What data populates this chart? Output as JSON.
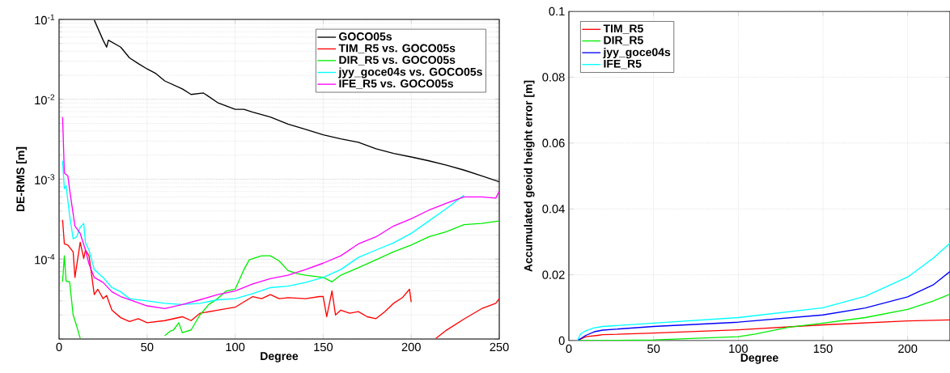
{
  "chart_data": [
    {
      "type": "line",
      "xlabel": "Degree",
      "ylabel": "DE-RMS [m]",
      "xlim": [
        0,
        250
      ],
      "ylim": [
        1e-05,
        0.1
      ],
      "log": "y",
      "grid": true,
      "legend": "top right",
      "xticks": [
        0,
        50,
        100,
        150,
        200,
        250
      ],
      "yticks": [
        {
          "value": 1e-05,
          "label": null
        },
        {
          "value": 0.0001,
          "label": "10$^{-4}$"
        },
        {
          "value": 0.001,
          "label": "10$^{-3}$"
        },
        {
          "value": 0.01,
          "label": "10$^{-2}$"
        },
        {
          "value": 0.1,
          "label": "10$^{-1}$"
        }
      ],
      "series": [
        {
          "name": "GOCO05s",
          "color": "#000000",
          "x": [
            20,
            25,
            27,
            28,
            35,
            40,
            45,
            50,
            55,
            60,
            70,
            75,
            82,
            90,
            100,
            105,
            110,
            120,
            130,
            140,
            150,
            160,
            170,
            180,
            190,
            200,
            210,
            220,
            230,
            240,
            250
          ],
          "values": [
            0.098,
            0.055,
            0.045,
            0.055,
            0.045,
            0.033,
            0.028,
            0.024,
            0.021,
            0.017,
            0.0135,
            0.0115,
            0.012,
            0.0091,
            0.0075,
            0.0075,
            0.0069,
            0.006,
            0.0049,
            0.0042,
            0.0036,
            0.0032,
            0.0029,
            0.0024,
            0.0021,
            0.0019,
            0.0017,
            0.0015,
            0.0013,
            0.0011,
            0.00093
          ]
        },
        {
          "name": "TIM_R5 vs. GOCO05s",
          "color": "#ff0000",
          "x": [
            2,
            3,
            5,
            8,
            9,
            12,
            14,
            15,
            17,
            20,
            22,
            25,
            27,
            30,
            35,
            40,
            45,
            50,
            60,
            70,
            75,
            80,
            90,
            100,
            110,
            115,
            120,
            125,
            130,
            140,
            148,
            150,
            152,
            155,
            157,
            160,
            165,
            170,
            175,
            180,
            185,
            190,
            195,
            199,
            200,
            205,
            210,
            214,
            220,
            230,
            240,
            248,
            250
          ],
          "values": [
            0.00031,
            0.000155,
            0.00015,
            0.000123,
            5.9e-05,
            0.000163,
            0.000102,
            0.00013,
            0.00011,
            3.6e-05,
            4.2e-05,
            3.2e-05,
            3.5e-05,
            2.3e-05,
            1.85e-05,
            1.66e-05,
            1.8e-05,
            1.6e-05,
            1.7e-05,
            1.9e-05,
            1.7e-05,
            2.1e-05,
            2.3e-05,
            2.5e-05,
            3.4e-05,
            3.2e-05,
            3.6e-05,
            3.2e-05,
            3.3e-05,
            3.2e-05,
            3.4e-05,
            3.4e-05,
            1.9e-05,
            4e-05,
            2e-05,
            2.3e-05,
            2.1e-05,
            2.2e-05,
            1.9e-05,
            1.8e-05,
            2.2e-05,
            2.8e-05,
            3.3e-05,
            4.2e-05,
            2.9e-05,
            null,
            null,
            1.02e-05,
            1.29e-05,
            1.78e-05,
            2.4e-05,
            2.8e-05,
            3.2e-05
          ]
        },
        {
          "name": "DIR_R5 vs. GOCO05s",
          "color": "#00ee00",
          "x": [
            2,
            3,
            4,
            6,
            8,
            10,
            12,
            20,
            40,
            60,
            63,
            65,
            68,
            70,
            75,
            80,
            85,
            90,
            95,
            100,
            105,
            108,
            115,
            120,
            125,
            130,
            135,
            140,
            150,
            155,
            160,
            170,
            180,
            190,
            200,
            210,
            220,
            230,
            240,
            250
          ],
          "values": [
            5.2e-05,
            0.00011,
            5.3e-05,
            5.2e-05,
            2e-05,
            1.45e-05,
            1.02e-05,
            null,
            null,
            1.1e-05,
            1.25e-05,
            1.3e-05,
            1.6e-05,
            1.2e-05,
            1.3e-05,
            2e-05,
            2.7e-05,
            3.2e-05,
            4e-05,
            4.2e-05,
            7.4e-05,
            9.8e-05,
            0.00011,
            0.00011,
            9.5e-05,
            7.2e-05,
            6.6e-05,
            6.3e-05,
            5.9e-05,
            5.2e-05,
            6.3e-05,
            7.8e-05,
            9.8e-05,
            0.000124,
            0.00015,
            0.00019,
            0.00022,
            0.00027,
            0.00028,
            0.0003
          ]
        },
        {
          "name": "jyy_goce04s vs. GOCO05s",
          "color": "#00ffff",
          "x": [
            2,
            3,
            4,
            6,
            8,
            10,
            12,
            14,
            15,
            17,
            20,
            25,
            30,
            35,
            40,
            50,
            60,
            70,
            80,
            90,
            100,
            110,
            120,
            130,
            140,
            150,
            160,
            170,
            180,
            190,
            200,
            210,
            220,
            230
          ],
          "values": [
            0.0017,
            0.00076,
            0.00083,
            0.00035,
            0.00018,
            0.00019,
            0.00025,
            0.00028,
            0.00016,
            0.00013,
            7.4e-05,
            5.9e-05,
            4.4e-05,
            3.9e-05,
            3.2e-05,
            3e-05,
            2.8e-05,
            2.7e-05,
            2.8e-05,
            3.1e-05,
            3.2e-05,
            3.7e-05,
            4.4e-05,
            4.6e-05,
            5.1e-05,
            5.9e-05,
            7.4e-05,
            0.000105,
            0.00013,
            0.00016,
            0.00021,
            0.0003,
            0.00043,
            0.00063
          ]
        },
        {
          "name": "IFE_R5 vs. GOCO05s",
          "color": "#ff00ff",
          "x": [
            2,
            3,
            5,
            6,
            9,
            12,
            15,
            17,
            20,
            25,
            30,
            35,
            40,
            50,
            60,
            70,
            80,
            90,
            100,
            110,
            120,
            130,
            140,
            150,
            160,
            170,
            180,
            190,
            200,
            210,
            220,
            230,
            240,
            248,
            250
          ],
          "values": [
            0.006,
            0.0012,
            0.0011,
            0.00074,
            0.00026,
            0.00021,
            0.00013,
            8.7e-05,
            5.9e-05,
            5.1e-05,
            3.9e-05,
            3.4e-05,
            3.1e-05,
            2.6e-05,
            2.4e-05,
            2.7e-05,
            3.1e-05,
            3.6e-05,
            4e-05,
            4.9e-05,
            5.7e-05,
            6.3e-05,
            7.4e-05,
            8.9e-05,
            0.00011,
            0.000155,
            0.00019,
            0.00026,
            0.00032,
            0.00041,
            0.0005,
            0.0006,
            0.0006,
            0.00058,
            0.00071
          ]
        }
      ]
    },
    {
      "type": "line",
      "xlabel": "Degree",
      "ylabel": "Accumulated geoid height error [m]",
      "xlim": [
        0,
        225
      ],
      "ylim": [
        0,
        0.1
      ],
      "grid": true,
      "legend": "top left",
      "xticks": [
        0,
        50,
        100,
        150,
        200
      ],
      "yticks": [
        0,
        0.02,
        0.04,
        0.06,
        0.08,
        0.1
      ],
      "series": [
        {
          "name": "TIM_R5",
          "color": "#ff0000",
          "x": [
            5,
            10,
            17,
            20,
            50,
            100,
            150,
            200,
            225
          ],
          "values": [
            0,
            0.0012,
            0.0016,
            0.0018,
            0.0023,
            0.0033,
            0.0048,
            0.006,
            0.0063
          ]
        },
        {
          "name": "DIR_R5",
          "color": "#00ee00",
          "x": [
            5,
            50,
            100,
            110,
            130,
            150,
            175,
            200,
            215,
            225
          ],
          "values": [
            0,
            0.0002,
            0.0012,
            0.002,
            0.0041,
            0.0053,
            0.007,
            0.0095,
            0.012,
            0.0141
          ]
        },
        {
          "name": "jyy_goce04s",
          "color": "#0000ff",
          "x": [
            5,
            10,
            15,
            20,
            50,
            100,
            150,
            175,
            200,
            215,
            225
          ],
          "values": [
            0,
            0.0016,
            0.0027,
            0.0032,
            0.0043,
            0.0056,
            0.0078,
            0.0099,
            0.0133,
            0.0169,
            0.021
          ]
        },
        {
          "name": "IFE_R5",
          "color": "#00ffff",
          "x": [
            5,
            7,
            10,
            15,
            20,
            50,
            100,
            150,
            175,
            200,
            215,
            225
          ],
          "values": [
            0,
            0.0021,
            0.003,
            0.0039,
            0.0043,
            0.0053,
            0.007,
            0.01,
            0.0135,
            0.0193,
            0.025,
            0.0296
          ]
        }
      ]
    }
  ]
}
